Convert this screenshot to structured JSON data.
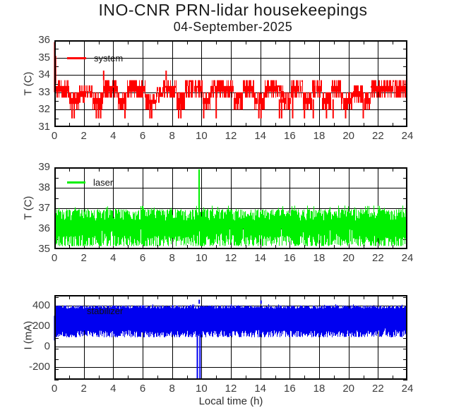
{
  "header": {
    "title": "INO-CNR PRN-lidar housekeepings",
    "subtitle": "04-September-2025"
  },
  "xlabel": "Local time (h)",
  "chart_data": [
    {
      "type": "line",
      "name": "system-temperature",
      "legend": "system",
      "color": "#ff0000",
      "ylabel": "T (C)",
      "xlabel": "",
      "xlim": [
        0,
        24
      ],
      "ylim": [
        31,
        36
      ],
      "xticks": [
        0,
        2,
        4,
        6,
        8,
        10,
        12,
        14,
        16,
        18,
        20,
        22,
        24
      ],
      "yticks": [
        31,
        32,
        33,
        34,
        35,
        36
      ],
      "x_minor_step": 1,
      "y_minor_step": 0.5,
      "grid": true,
      "series_style": "quantized-step-band",
      "quant_step": 0.33,
      "edge_prob": 0.35,
      "gap_prob": 0.05,
      "band_blocks": [
        [
          0.0,
          1.0,
          32.7,
          33.7
        ],
        [
          1.0,
          1.7,
          32.0,
          33.0
        ],
        [
          1.7,
          2.1,
          32.4,
          33.4
        ],
        [
          2.1,
          2.6,
          32.7,
          33.4
        ],
        [
          2.6,
          3.3,
          32.0,
          33.0
        ],
        [
          3.3,
          4.3,
          32.7,
          33.7
        ],
        [
          4.3,
          4.9,
          32.0,
          33.0
        ],
        [
          4.9,
          6.2,
          32.7,
          33.7
        ],
        [
          6.2,
          6.9,
          32.0,
          32.9
        ],
        [
          6.9,
          7.4,
          32.4,
          33.3
        ],
        [
          7.4,
          8.3,
          32.7,
          33.7
        ],
        [
          8.3,
          8.9,
          32.0,
          33.0
        ],
        [
          8.9,
          10.1,
          32.7,
          33.7
        ],
        [
          10.1,
          10.6,
          32.0,
          33.0
        ],
        [
          10.6,
          12.2,
          32.7,
          33.7
        ],
        [
          12.2,
          12.8,
          32.0,
          33.0
        ],
        [
          12.8,
          13.6,
          32.7,
          33.7
        ],
        [
          13.6,
          14.3,
          32.0,
          33.0
        ],
        [
          14.3,
          15.1,
          32.7,
          33.7
        ],
        [
          15.1,
          15.6,
          32.4,
          33.4
        ],
        [
          15.6,
          16.1,
          32.0,
          33.0
        ],
        [
          16.1,
          16.9,
          32.7,
          33.7
        ],
        [
          16.9,
          17.5,
          32.0,
          33.0
        ],
        [
          17.5,
          18.2,
          32.7,
          33.7
        ],
        [
          18.2,
          18.8,
          32.0,
          33.0
        ],
        [
          18.8,
          19.5,
          32.7,
          33.7
        ],
        [
          19.5,
          20.3,
          32.0,
          33.0
        ],
        [
          20.3,
          21.0,
          32.4,
          33.4
        ],
        [
          21.0,
          21.5,
          32.0,
          33.0
        ],
        [
          21.5,
          24.0,
          32.7,
          33.7
        ]
      ],
      "features": [
        {
          "t": 0.02,
          "v0": 33.0,
          "v1": 35.9
        },
        {
          "t": 0.08,
          "v0": 33.5,
          "v1": 35.1
        },
        {
          "t": 3.35,
          "v0": 33.7,
          "v1": 34.25
        },
        {
          "t": 7.6,
          "v0": 33.7,
          "v1": 34.25
        },
        {
          "t": 1.2,
          "v0": 31.5,
          "v1": 32.6
        },
        {
          "t": 1.35,
          "v0": 31.5,
          "v1": 32.6
        },
        {
          "t": 2.85,
          "v0": 31.5,
          "v1": 32.6
        },
        {
          "t": 3.0,
          "v0": 31.5,
          "v1": 32.6
        },
        {
          "t": 3.15,
          "v0": 31.5,
          "v1": 32.6
        },
        {
          "t": 4.8,
          "v0": 31.5,
          "v1": 32.9
        },
        {
          "t": 6.5,
          "v0": 31.5,
          "v1": 32.5
        },
        {
          "t": 6.62,
          "v0": 31.5,
          "v1": 32.5
        },
        {
          "t": 8.45,
          "v0": 31.5,
          "v1": 32.6
        },
        {
          "t": 8.6,
          "v0": 31.5,
          "v1": 32.6
        },
        {
          "t": 10.15,
          "v0": 31.5,
          "v1": 32.6
        },
        {
          "t": 11.0,
          "v0": 31.5,
          "v1": 32.9
        },
        {
          "t": 13.9,
          "v0": 31.5,
          "v1": 32.6
        },
        {
          "t": 14.05,
          "v0": 31.5,
          "v1": 32.9
        },
        {
          "t": 15.3,
          "v0": 31.5,
          "v1": 32.6
        },
        {
          "t": 15.45,
          "v0": 31.5,
          "v1": 32.6
        },
        {
          "t": 16.2,
          "v0": 31.5,
          "v1": 32.9
        },
        {
          "t": 17.0,
          "v0": 31.5,
          "v1": 32.6
        },
        {
          "t": 17.6,
          "v0": 31.5,
          "v1": 32.6
        },
        {
          "t": 18.5,
          "v0": 31.5,
          "v1": 32.6
        },
        {
          "t": 18.95,
          "v0": 31.5,
          "v1": 32.6
        },
        {
          "t": 19.8,
          "v0": 31.5,
          "v1": 32.6
        },
        {
          "t": 21.0,
          "v0": 31.5,
          "v1": 32.6
        }
      ]
    },
    {
      "type": "line",
      "name": "laser-temperature",
      "legend": "laser",
      "color": "#00f000",
      "ylabel": "T (C)",
      "xlabel": "",
      "xlim": [
        0,
        24
      ],
      "ylim": [
        35,
        39
      ],
      "xticks": [
        0,
        2,
        4,
        6,
        8,
        10,
        12,
        14,
        16,
        18,
        20,
        22,
        24
      ],
      "yticks": [
        35,
        36,
        37,
        38,
        39
      ],
      "x_minor_step": 1,
      "y_minor_step": 0.5,
      "grid": true,
      "series_style": "noise-band",
      "noise_band": {
        "bottom": 35.15,
        "top": 36.95,
        "bottom_jitter": 0.55,
        "top_jitter": 0.55,
        "short_prob": 0.12,
        "short_shift": 0.3
      },
      "features": [
        {
          "t": 9.84,
          "v0": 36.6,
          "v1": 38.9
        }
      ]
    },
    {
      "type": "line",
      "name": "stabilizer-current",
      "legend": "stabilizer",
      "color": "#0000f0",
      "ylabel": "I (mA)",
      "xlabel": "Local time (h)",
      "xlim": [
        0,
        24
      ],
      "ylim": [
        -320,
        500
      ],
      "xticks": [
        0,
        2,
        4,
        6,
        8,
        10,
        12,
        14,
        16,
        18,
        20,
        22,
        24
      ],
      "yticks": [
        -200,
        0,
        200,
        400
      ],
      "x_minor_step": 1,
      "y_minor_step": 100,
      "grid": true,
      "series_style": "noise-band",
      "noise_band": {
        "bottom": 92,
        "top": 398,
        "bottom_jitter": 65,
        "top_jitter": 30,
        "short_prob": 0.07,
        "short_shift": 22
      },
      "features": [
        {
          "t": 0.02,
          "v0": 60,
          "v1": 300
        },
        {
          "t": 9.72,
          "v0": -320,
          "v1": 300
        },
        {
          "t": 9.9,
          "v0": -320,
          "v1": 300
        },
        {
          "t": 9.85,
          "v0": 415,
          "v1": 455
        },
        {
          "t": 14.05,
          "v0": 415,
          "v1": 448
        }
      ]
    }
  ]
}
